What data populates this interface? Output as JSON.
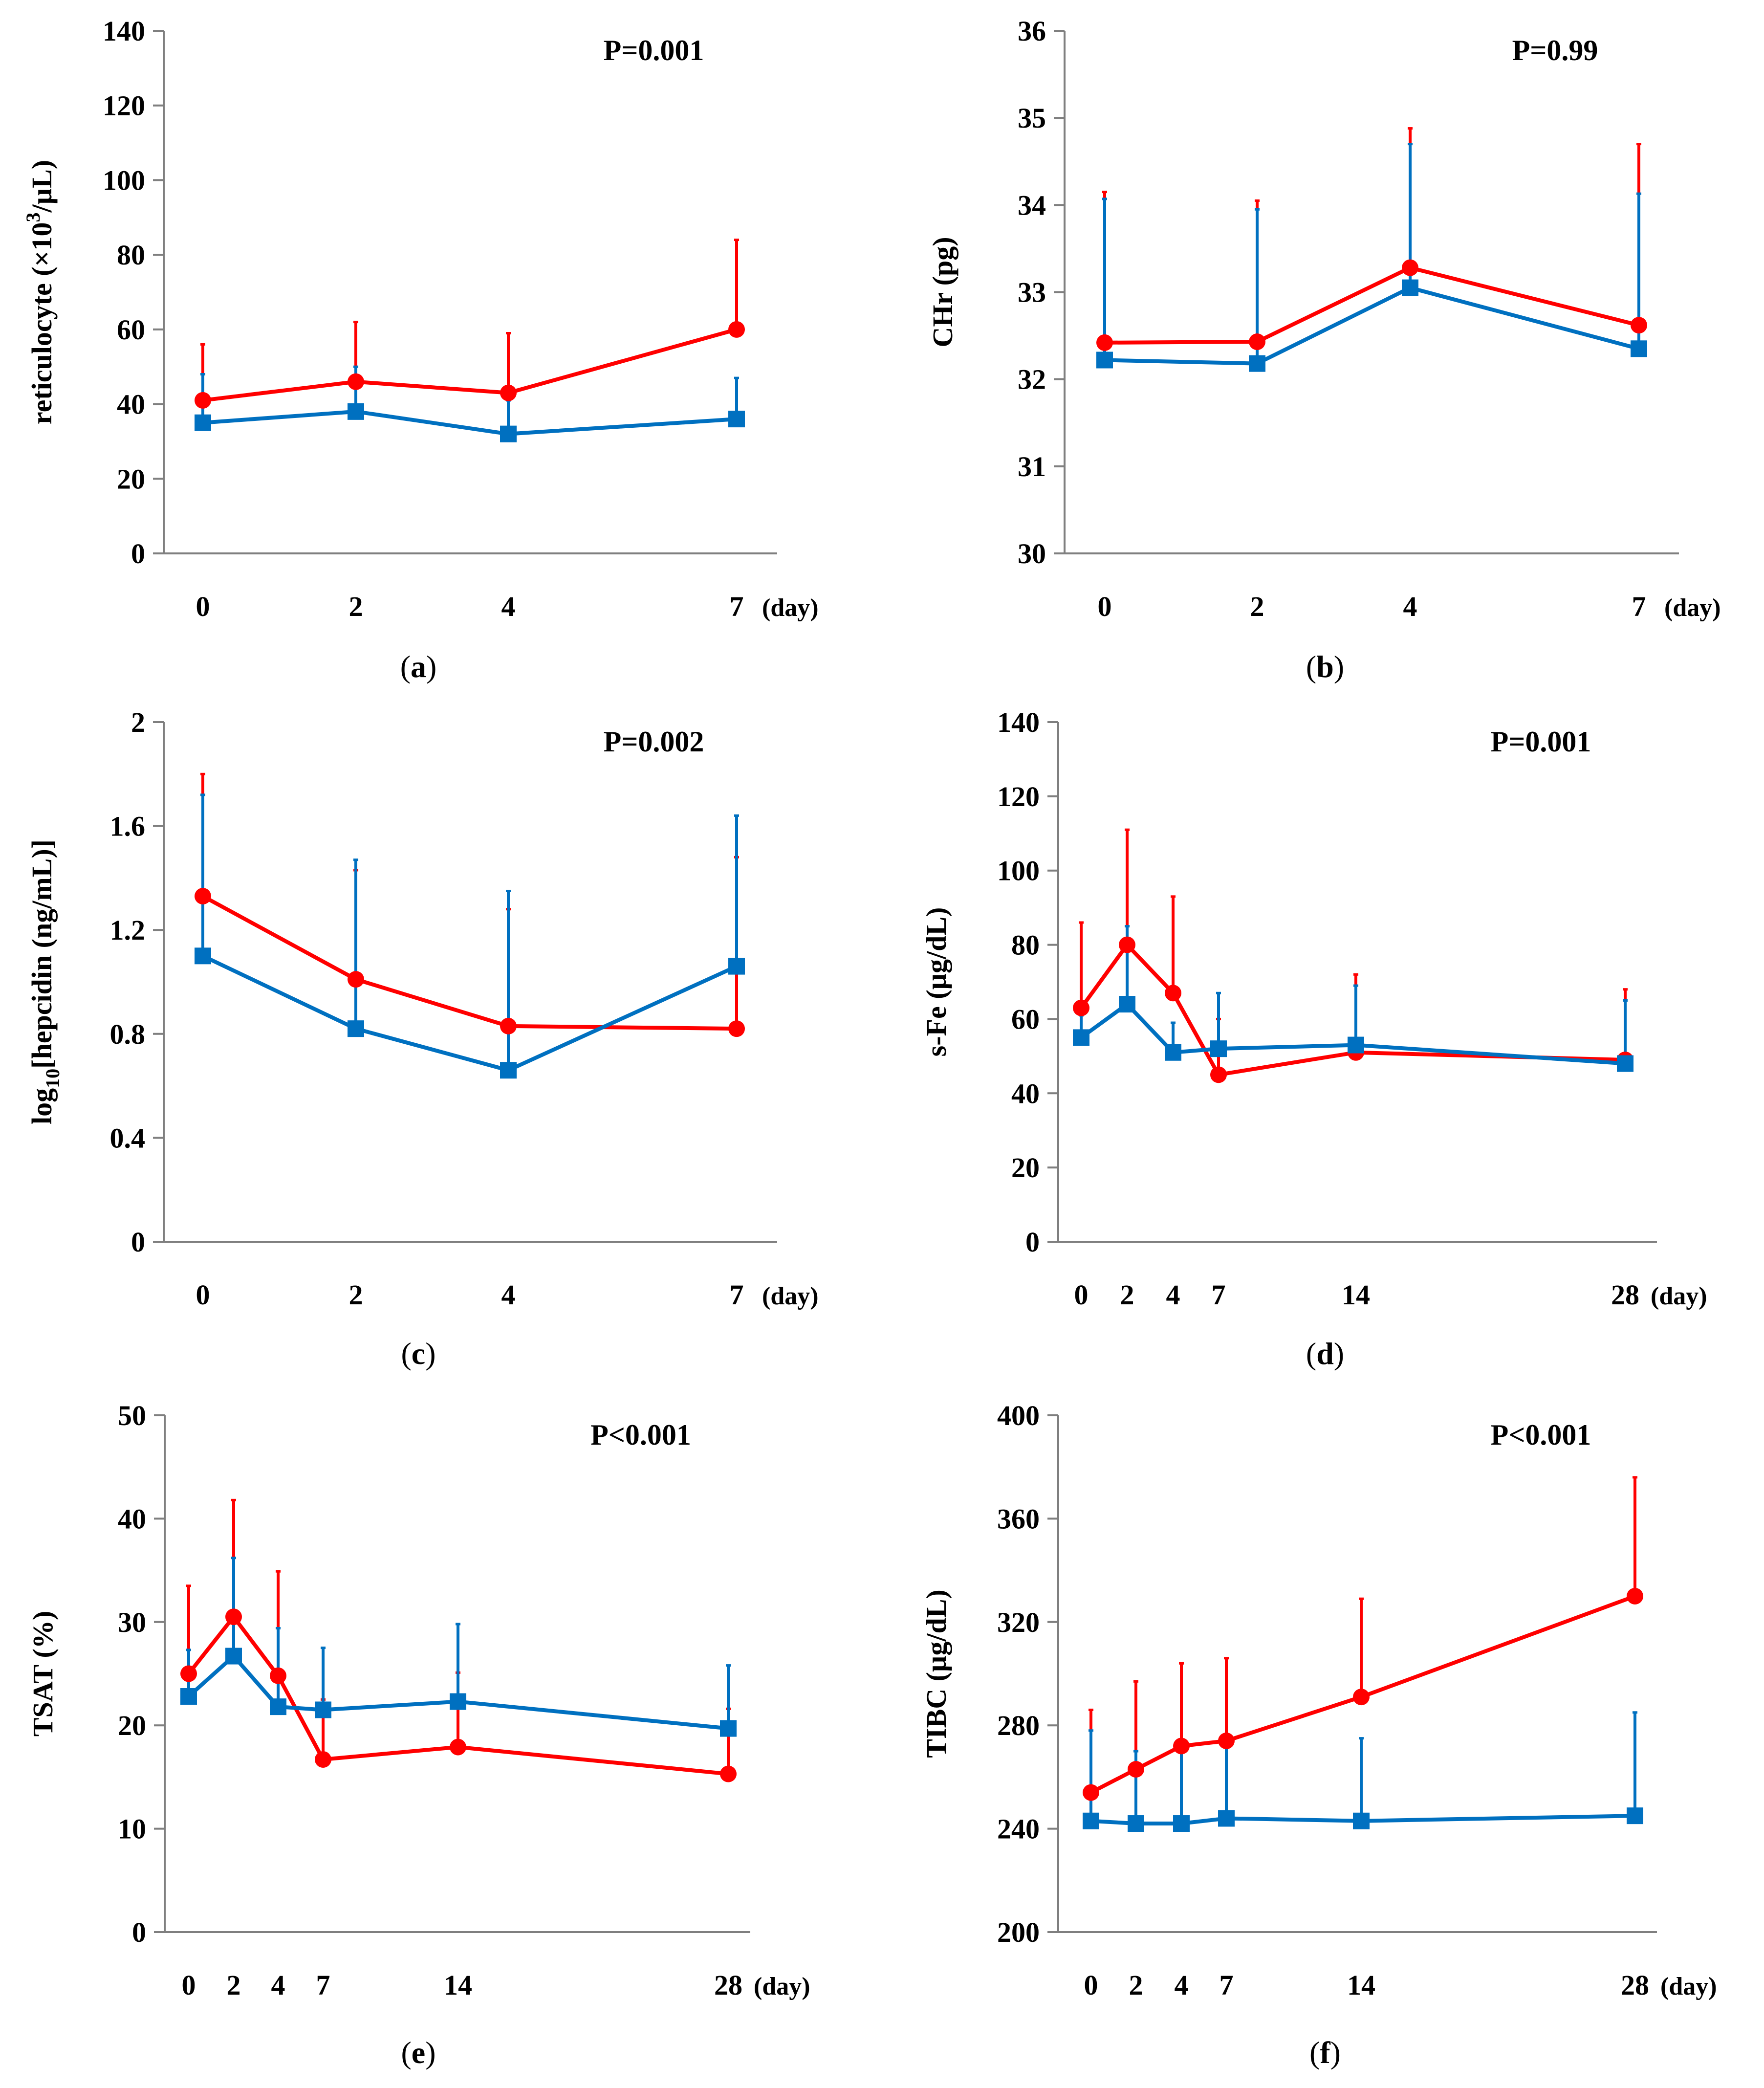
{
  "colors": {
    "series_red": "#ff0000",
    "series_blue": "#0070c0",
    "axis": "#7f7f7f"
  },
  "chart_data": [
    {
      "id": "a",
      "type": "line",
      "panel_label": "a",
      "ylabel": "reticulocyte (×10³/µL)",
      "ylabel_parts": {
        "main": "reticulocyte (×10",
        "sup": "3",
        "tail": "/µL)"
      },
      "annotation": "P=0.001",
      "x_unit": "(day)",
      "x": [
        0,
        2,
        4,
        7
      ],
      "x_tick_labels": [
        "0",
        "2",
        "4",
        "7"
      ],
      "ylim": [
        0,
        140
      ],
      "y_ticks": [
        0,
        20,
        40,
        60,
        80,
        100,
        120,
        140
      ],
      "series": [
        {
          "name": "red",
          "marker": "circle",
          "values": [
            41,
            46,
            43,
            60
          ],
          "error": [
            15,
            16,
            16,
            24
          ]
        },
        {
          "name": "blue",
          "marker": "square",
          "values": [
            35,
            38,
            32,
            36
          ],
          "error": [
            13,
            12,
            9,
            11
          ]
        }
      ]
    },
    {
      "id": "b",
      "type": "line",
      "panel_label": "b",
      "ylabel": "CHr (pg)",
      "annotation": "P=0.99",
      "x_unit": "(day)",
      "x": [
        0,
        2,
        4,
        7
      ],
      "x_tick_labels": [
        "0",
        "2",
        "4",
        "7"
      ],
      "ylim": [
        30,
        36
      ],
      "y_ticks": [
        30,
        31,
        32,
        33,
        34,
        35,
        36
      ],
      "series": [
        {
          "name": "red",
          "marker": "circle",
          "values": [
            32.42,
            32.43,
            33.28,
            32.62
          ],
          "error": [
            1.73,
            1.62,
            1.6,
            2.08
          ]
        },
        {
          "name": "blue",
          "marker": "square",
          "values": [
            32.22,
            32.18,
            33.05,
            32.35
          ],
          "error": [
            1.85,
            1.77,
            1.65,
            1.78
          ]
        }
      ]
    },
    {
      "id": "c",
      "type": "line",
      "panel_label": "c",
      "ylabel": "log₁₀[hepcidin (ng/mL)]",
      "ylabel_parts": {
        "main": "log",
        "sub": "10",
        "tail": "[hepcidin (ng/mL)]"
      },
      "annotation": "P=0.002",
      "x_unit": "(day)",
      "x": [
        0,
        2,
        4,
        7
      ],
      "x_tick_labels": [
        "0",
        "2",
        "4",
        "7"
      ],
      "ylim": [
        0,
        2
      ],
      "y_ticks": [
        "0",
        "0.4",
        "0.8",
        "1.2",
        "1.6",
        "2"
      ],
      "series": [
        {
          "name": "red",
          "marker": "circle",
          "values": [
            1.33,
            1.01,
            0.83,
            0.82
          ],
          "error": [
            0.47,
            0.42,
            0.45,
            0.66
          ]
        },
        {
          "name": "blue",
          "marker": "square",
          "values": [
            1.1,
            0.82,
            0.66,
            1.06
          ],
          "error": [
            0.62,
            0.65,
            0.69,
            0.58
          ]
        }
      ]
    },
    {
      "id": "d",
      "type": "line",
      "panel_label": "d",
      "ylabel": "s-Fe (µg/dL)",
      "annotation": "P=0.001",
      "x_unit": "(day)",
      "x": [
        0,
        2,
        4,
        7,
        14,
        28
      ],
      "x_tick_labels": [
        "0",
        "2",
        "4",
        "7",
        "14",
        "28"
      ],
      "ylim": [
        0,
        140
      ],
      "y_ticks": [
        0,
        20,
        40,
        60,
        80,
        100,
        120,
        140
      ],
      "series": [
        {
          "name": "red",
          "marker": "circle",
          "values": [
            63,
            80,
            67,
            45,
            51,
            49
          ],
          "error": [
            23,
            31,
            26,
            15,
            21,
            19
          ]
        },
        {
          "name": "blue",
          "marker": "square",
          "values": [
            55,
            64,
            51,
            52,
            53,
            48
          ],
          "error": [
            6,
            21,
            8,
            15,
            16,
            17
          ]
        }
      ]
    },
    {
      "id": "e",
      "type": "line",
      "panel_label": "e",
      "ylabel": "TSAT (%)",
      "annotation": "P<0.001",
      "x_unit": "(day)",
      "x": [
        0,
        2,
        4,
        7,
        14,
        28
      ],
      "x_tick_labels": [
        "0",
        "2",
        "4",
        "7",
        "14",
        "28"
      ],
      "ylim": [
        0,
        50
      ],
      "y_ticks": [
        0,
        10,
        20,
        30,
        40,
        50
      ],
      "series": [
        {
          "name": "red",
          "marker": "circle",
          "values": [
            25,
            30.5,
            24.8,
            16.7,
            17.9,
            15.3
          ],
          "error": [
            8.5,
            11.3,
            10.1,
            5.8,
            7.2,
            6.3
          ]
        },
        {
          "name": "blue",
          "marker": "square",
          "values": [
            22.8,
            26.7,
            21.8,
            21.5,
            22.3,
            19.7
          ],
          "error": [
            4.5,
            9.5,
            7.6,
            6,
            7.5,
            6.1
          ]
        }
      ]
    },
    {
      "id": "f",
      "type": "line",
      "panel_label": "f",
      "ylabel": "TIBC (µg/dL)",
      "annotation": "P<0.001",
      "x_unit": "(day)",
      "x": [
        0,
        2,
        4,
        7,
        14,
        28
      ],
      "x_tick_labels": [
        "0",
        "2",
        "4",
        "7",
        "14",
        "28"
      ],
      "ylim": [
        200,
        400
      ],
      "y_ticks": [
        200,
        240,
        280,
        320,
        360,
        400
      ],
      "series": [
        {
          "name": "red",
          "marker": "circle",
          "values": [
            254,
            263,
            272,
            274,
            291,
            330
          ],
          "error": [
            32,
            34,
            32,
            32,
            38,
            46
          ]
        },
        {
          "name": "blue",
          "marker": "square",
          "values": [
            243,
            242,
            242,
            244,
            243,
            245
          ],
          "error": [
            35,
            28,
            29,
            29,
            32,
            40
          ]
        }
      ]
    }
  ]
}
